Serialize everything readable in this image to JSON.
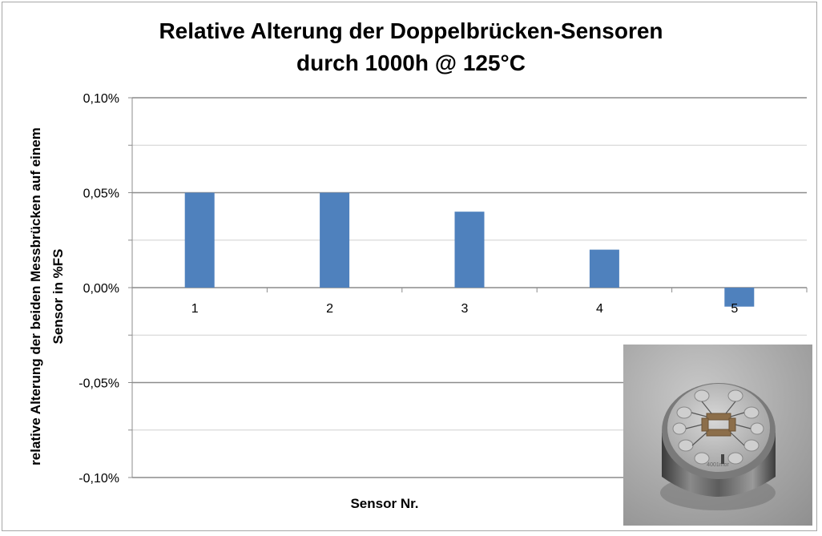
{
  "chart_data": {
    "type": "bar",
    "title": [
      "Relative Alterung der Doppelbrücken-Sensoren",
      "durch 1000h @ 125°C"
    ],
    "xlabel": "Sensor Nr.",
    "ylabel": [
      "relative Alterung der beiden Messbrücken auf einem",
      "Sensor in %FS"
    ],
    "categories": [
      "1",
      "2",
      "3",
      "4",
      "5"
    ],
    "values": [
      0.05,
      0.05,
      0.04,
      0.02,
      -0.01
    ],
    "unit": "%",
    "ylim": [
      -0.1,
      0.1
    ],
    "yticks": [
      0.1,
      0.05,
      0.0,
      -0.05,
      -0.1
    ],
    "ytick_labels": [
      "0,10%",
      "0,05%",
      "0,00%",
      "-0,05%",
      "-0,10%"
    ],
    "grid": true,
    "bar_color": "#4f81bd"
  },
  "inset_photo": {
    "icon": "sensor-photo",
    "engraving": "4001mor"
  }
}
